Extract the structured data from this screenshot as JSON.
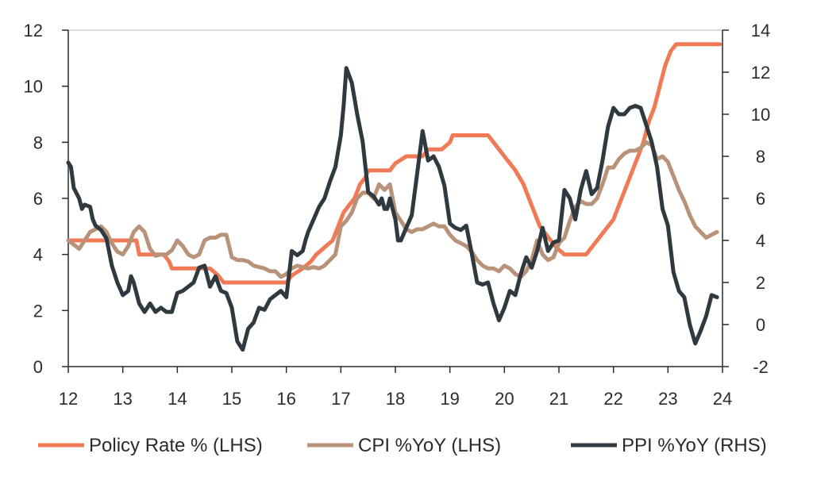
{
  "chart_data": {
    "type": "line",
    "x_range": [
      12,
      24
    ],
    "x_ticks": [
      "12",
      "13",
      "14",
      "15",
      "16",
      "17",
      "18",
      "19",
      "20",
      "21",
      "22",
      "23",
      "24"
    ],
    "y_left": {
      "range": [
        0,
        12
      ],
      "ticks": [
        "0",
        "2",
        "4",
        "6",
        "8",
        "10",
        "12"
      ]
    },
    "y_right": {
      "range": [
        -2,
        14
      ],
      "ticks": [
        "-2",
        "0",
        "2",
        "4",
        "6",
        "8",
        "10",
        "12",
        "14"
      ]
    },
    "grid": false,
    "legend_position": "bottom",
    "series": [
      {
        "name": "Policy Rate % (LHS)",
        "axis": "left",
        "color": "#f07a55",
        "points": [
          [
            12.0,
            4.5
          ],
          [
            13.25,
            4.5
          ],
          [
            13.3,
            4.0
          ],
          [
            13.75,
            4.0
          ],
          [
            13.85,
            3.75
          ],
          [
            13.9,
            3.5
          ],
          [
            14.6,
            3.5
          ],
          [
            14.75,
            3.25
          ],
          [
            14.85,
            3.0
          ],
          [
            15.8,
            3.0
          ],
          [
            16.0,
            3.0
          ],
          [
            16.1,
            3.25
          ],
          [
            16.3,
            3.5
          ],
          [
            16.45,
            3.75
          ],
          [
            16.55,
            4.0
          ],
          [
            16.7,
            4.25
          ],
          [
            16.85,
            4.5
          ],
          [
            16.95,
            5.0
          ],
          [
            17.05,
            5.5
          ],
          [
            17.15,
            5.75
          ],
          [
            17.25,
            6.0
          ],
          [
            17.35,
            6.5
          ],
          [
            17.45,
            6.75
          ],
          [
            17.5,
            7.0
          ],
          [
            17.9,
            7.0
          ],
          [
            18.0,
            7.25
          ],
          [
            18.2,
            7.5
          ],
          [
            18.5,
            7.5
          ],
          [
            18.6,
            7.75
          ],
          [
            18.85,
            7.75
          ],
          [
            19.0,
            8.0
          ],
          [
            19.05,
            8.25
          ],
          [
            19.7,
            8.25
          ],
          [
            19.8,
            8.0
          ],
          [
            19.9,
            7.75
          ],
          [
            20.0,
            7.5
          ],
          [
            20.1,
            7.25
          ],
          [
            20.2,
            7.0
          ],
          [
            20.35,
            6.5
          ],
          [
            20.45,
            6.0
          ],
          [
            20.55,
            5.5
          ],
          [
            20.65,
            5.0
          ],
          [
            20.75,
            4.75
          ],
          [
            20.85,
            4.5
          ],
          [
            20.95,
            4.25
          ],
          [
            21.1,
            4.0
          ],
          [
            21.5,
            4.0
          ],
          [
            21.6,
            4.25
          ],
          [
            21.7,
            4.5
          ],
          [
            21.8,
            4.75
          ],
          [
            21.9,
            5.0
          ],
          [
            22.0,
            5.25
          ],
          [
            22.1,
            5.75
          ],
          [
            22.2,
            6.25
          ],
          [
            22.3,
            6.75
          ],
          [
            22.45,
            7.5
          ],
          [
            22.55,
            8.0
          ],
          [
            22.65,
            8.75
          ],
          [
            22.75,
            9.25
          ],
          [
            22.85,
            10.0
          ],
          [
            22.95,
            10.75
          ],
          [
            23.05,
            11.25
          ],
          [
            23.15,
            11.5
          ],
          [
            23.25,
            11.5
          ],
          [
            23.95,
            11.5
          ]
        ]
      },
      {
        "name": "CPI %YoY (LHS)",
        "axis": "left",
        "color": "#b8937a",
        "points": [
          [
            12.0,
            4.5
          ],
          [
            12.1,
            4.35
          ],
          [
            12.2,
            4.2
          ],
          [
            12.3,
            4.5
          ],
          [
            12.4,
            4.8
          ],
          [
            12.5,
            4.9
          ],
          [
            12.6,
            5.0
          ],
          [
            12.7,
            4.8
          ],
          [
            12.8,
            4.4
          ],
          [
            12.9,
            4.1
          ],
          [
            13.0,
            4.0
          ],
          [
            13.1,
            4.3
          ],
          [
            13.2,
            4.8
          ],
          [
            13.3,
            5.0
          ],
          [
            13.4,
            4.8
          ],
          [
            13.5,
            4.2
          ],
          [
            13.6,
            3.95
          ],
          [
            13.7,
            4.0
          ],
          [
            13.8,
            4.0
          ],
          [
            13.9,
            4.15
          ],
          [
            14.0,
            4.5
          ],
          [
            14.1,
            4.3
          ],
          [
            14.2,
            4.0
          ],
          [
            14.3,
            3.9
          ],
          [
            14.4,
            4.0
          ],
          [
            14.5,
            4.5
          ],
          [
            14.6,
            4.6
          ],
          [
            14.7,
            4.6
          ],
          [
            14.8,
            4.7
          ],
          [
            14.9,
            4.7
          ],
          [
            15.0,
            3.9
          ],
          [
            15.1,
            3.8
          ],
          [
            15.2,
            3.8
          ],
          [
            15.3,
            3.75
          ],
          [
            15.4,
            3.6
          ],
          [
            15.5,
            3.55
          ],
          [
            15.6,
            3.5
          ],
          [
            15.7,
            3.4
          ],
          [
            15.8,
            3.4
          ],
          [
            15.9,
            3.2
          ],
          [
            16.0,
            3.3
          ],
          [
            16.1,
            3.5
          ],
          [
            16.2,
            3.6
          ],
          [
            16.3,
            3.55
          ],
          [
            16.4,
            3.5
          ],
          [
            16.5,
            3.55
          ],
          [
            16.6,
            3.5
          ],
          [
            16.7,
            3.6
          ],
          [
            16.8,
            3.8
          ],
          [
            16.9,
            4.0
          ],
          [
            17.0,
            5.0
          ],
          [
            17.1,
            5.2
          ],
          [
            17.2,
            5.5
          ],
          [
            17.3,
            6.0
          ],
          [
            17.4,
            6.2
          ],
          [
            17.5,
            6.2
          ],
          [
            17.6,
            6.0
          ],
          [
            17.7,
            6.5
          ],
          [
            17.8,
            6.3
          ],
          [
            17.9,
            6.5
          ],
          [
            18.0,
            5.5
          ],
          [
            18.1,
            5.2
          ],
          [
            18.2,
            4.9
          ],
          [
            18.3,
            4.8
          ],
          [
            18.4,
            4.9
          ],
          [
            18.5,
            4.9
          ],
          [
            18.6,
            5.0
          ],
          [
            18.7,
            5.1
          ],
          [
            18.8,
            5.0
          ],
          [
            18.9,
            5.0
          ],
          [
            19.0,
            4.7
          ],
          [
            19.1,
            4.5
          ],
          [
            19.2,
            4.4
          ],
          [
            19.3,
            4.3
          ],
          [
            19.4,
            4.1
          ],
          [
            19.5,
            3.8
          ],
          [
            19.6,
            3.6
          ],
          [
            19.7,
            3.5
          ],
          [
            19.8,
            3.5
          ],
          [
            19.9,
            3.4
          ],
          [
            20.0,
            3.6
          ],
          [
            20.1,
            3.5
          ],
          [
            20.2,
            3.3
          ],
          [
            20.3,
            3.2
          ],
          [
            20.4,
            3.4
          ],
          [
            20.5,
            3.8
          ],
          [
            20.6,
            4.5
          ],
          [
            20.7,
            4.0
          ],
          [
            20.8,
            3.8
          ],
          [
            20.9,
            3.9
          ],
          [
            21.0,
            4.4
          ],
          [
            21.1,
            4.6
          ],
          [
            21.2,
            5.2
          ],
          [
            21.3,
            5.7
          ],
          [
            21.4,
            5.9
          ],
          [
            21.5,
            5.8
          ],
          [
            21.6,
            5.8
          ],
          [
            21.7,
            6.0
          ],
          [
            21.8,
            6.5
          ],
          [
            21.9,
            7.1
          ],
          [
            22.0,
            7.1
          ],
          [
            22.1,
            7.4
          ],
          [
            22.2,
            7.6
          ],
          [
            22.3,
            7.7
          ],
          [
            22.4,
            7.7
          ],
          [
            22.5,
            7.8
          ],
          [
            22.6,
            8.0
          ],
          [
            22.7,
            7.9
          ],
          [
            22.8,
            7.4
          ],
          [
            22.9,
            7.5
          ],
          [
            23.0,
            7.3
          ],
          [
            23.1,
            6.8
          ],
          [
            23.2,
            6.3
          ],
          [
            23.3,
            5.9
          ],
          [
            23.4,
            5.4
          ],
          [
            23.5,
            5.0
          ],
          [
            23.6,
            4.8
          ],
          [
            23.7,
            4.6
          ],
          [
            23.8,
            4.7
          ],
          [
            23.9,
            4.8
          ]
        ]
      },
      {
        "name": "PPI %YoY (RHS)",
        "axis": "right",
        "color": "#2f3a40",
        "points": [
          [
            12.0,
            7.7
          ],
          [
            12.05,
            7.5
          ],
          [
            12.1,
            6.5
          ],
          [
            12.2,
            6.0
          ],
          [
            12.25,
            5.5
          ],
          [
            12.3,
            5.7
          ],
          [
            12.4,
            5.6
          ],
          [
            12.45,
            5.0
          ],
          [
            12.5,
            4.7
          ],
          [
            12.6,
            4.5
          ],
          [
            12.7,
            4.1
          ],
          [
            12.8,
            2.8
          ],
          [
            12.9,
            2.0
          ],
          [
            13.0,
            1.4
          ],
          [
            13.1,
            1.6
          ],
          [
            13.15,
            2.3
          ],
          [
            13.2,
            2.0
          ],
          [
            13.3,
            1.0
          ],
          [
            13.4,
            0.6
          ],
          [
            13.5,
            1.0
          ],
          [
            13.6,
            0.6
          ],
          [
            13.7,
            0.8
          ],
          [
            13.8,
            0.6
          ],
          [
            13.9,
            0.6
          ],
          [
            14.0,
            1.5
          ],
          [
            14.1,
            1.6
          ],
          [
            14.2,
            1.8
          ],
          [
            14.3,
            2.0
          ],
          [
            14.4,
            2.7
          ],
          [
            14.5,
            2.8
          ],
          [
            14.6,
            1.8
          ],
          [
            14.7,
            2.3
          ],
          [
            14.8,
            1.6
          ],
          [
            14.9,
            1.5
          ],
          [
            15.0,
            0.8
          ],
          [
            15.1,
            -0.8
          ],
          [
            15.2,
            -1.2
          ],
          [
            15.3,
            -0.2
          ],
          [
            15.4,
            0.1
          ],
          [
            15.5,
            0.8
          ],
          [
            15.6,
            0.7
          ],
          [
            15.7,
            1.2
          ],
          [
            15.8,
            1.4
          ],
          [
            15.9,
            1.6
          ],
          [
            16.0,
            1.3
          ],
          [
            16.1,
            3.5
          ],
          [
            16.2,
            3.3
          ],
          [
            16.3,
            3.5
          ],
          [
            16.35,
            4.0
          ],
          [
            16.4,
            4.4
          ],
          [
            16.5,
            5.0
          ],
          [
            16.6,
            5.6
          ],
          [
            16.7,
            6.0
          ],
          [
            16.8,
            6.8
          ],
          [
            16.9,
            7.5
          ],
          [
            17.0,
            9.0
          ],
          [
            17.05,
            10.4
          ],
          [
            17.1,
            12.2
          ],
          [
            17.2,
            11.5
          ],
          [
            17.3,
            10.0
          ],
          [
            17.4,
            8.7
          ],
          [
            17.5,
            6.3
          ],
          [
            17.6,
            6.1
          ],
          [
            17.7,
            5.7
          ],
          [
            17.75,
            6.0
          ],
          [
            17.8,
            5.5
          ],
          [
            17.85,
            5.5
          ],
          [
            17.9,
            6.0
          ],
          [
            18.0,
            5.0
          ],
          [
            18.05,
            4.0
          ],
          [
            18.1,
            4.0
          ],
          [
            18.2,
            4.6
          ],
          [
            18.3,
            5.2
          ],
          [
            18.4,
            7.2
          ],
          [
            18.5,
            9.2
          ],
          [
            18.55,
            8.5
          ],
          [
            18.6,
            7.8
          ],
          [
            18.7,
            8.0
          ],
          [
            18.8,
            7.5
          ],
          [
            18.9,
            6.6
          ],
          [
            19.0,
            4.8
          ],
          [
            19.1,
            4.6
          ],
          [
            19.2,
            4.5
          ],
          [
            19.3,
            4.7
          ],
          [
            19.4,
            3.4
          ],
          [
            19.5,
            2.0
          ],
          [
            19.6,
            1.9
          ],
          [
            19.7,
            2.0
          ],
          [
            19.8,
            1.0
          ],
          [
            19.9,
            0.2
          ],
          [
            20.0,
            0.8
          ],
          [
            20.1,
            1.6
          ],
          [
            20.2,
            1.4
          ],
          [
            20.3,
            2.4
          ],
          [
            20.4,
            3.2
          ],
          [
            20.5,
            2.7
          ],
          [
            20.6,
            3.5
          ],
          [
            20.7,
            4.6
          ],
          [
            20.8,
            3.5
          ],
          [
            20.9,
            3.9
          ],
          [
            21.0,
            4.0
          ],
          [
            21.1,
            6.4
          ],
          [
            21.2,
            6.0
          ],
          [
            21.3,
            5.0
          ],
          [
            21.4,
            6.4
          ],
          [
            21.5,
            7.3
          ],
          [
            21.6,
            6.2
          ],
          [
            21.7,
            6.5
          ],
          [
            21.8,
            7.8
          ],
          [
            21.9,
            9.4
          ],
          [
            22.0,
            10.3
          ],
          [
            22.1,
            10.0
          ],
          [
            22.2,
            10.0
          ],
          [
            22.3,
            10.3
          ],
          [
            22.4,
            10.4
          ],
          [
            22.5,
            10.3
          ],
          [
            22.6,
            9.5
          ],
          [
            22.7,
            8.7
          ],
          [
            22.8,
            7.5
          ],
          [
            22.9,
            5.5
          ],
          [
            23.0,
            4.7
          ],
          [
            23.1,
            2.5
          ],
          [
            23.2,
            1.6
          ],
          [
            23.3,
            1.3
          ],
          [
            23.4,
            0.0
          ],
          [
            23.5,
            -0.9
          ],
          [
            23.6,
            -0.3
          ],
          [
            23.7,
            0.4
          ],
          [
            23.8,
            1.4
          ],
          [
            23.9,
            1.3
          ]
        ]
      }
    ]
  }
}
